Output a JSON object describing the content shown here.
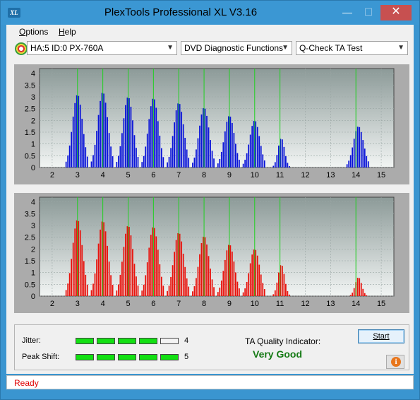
{
  "window": {
    "title": "PlexTools Professional XL V3.16",
    "icon_label": "XL",
    "minimize_glyph": "—",
    "maximize_glyph": "☐",
    "close_glyph": "✕"
  },
  "menu": {
    "items": [
      {
        "label": "Options",
        "accel": "O",
        "rest": "ptions"
      },
      {
        "label": "Help",
        "accel": "H",
        "rest": "elp"
      }
    ]
  },
  "toolbar": {
    "drive": "HA:5 ID:0  PX-760A",
    "function": "DVD Diagnostic Functions",
    "test": "Q-Check TA Test"
  },
  "colors": {
    "top_bars": "#0a14d8",
    "bottom_bars": "#e8120c",
    "marker_lines": "#20d020",
    "meter_fill": "#12e012",
    "status_text": "#e00000",
    "quality_text": "#157a15"
  },
  "charts": {
    "x_ticks": [
      "2",
      "3",
      "4",
      "5",
      "6",
      "7",
      "8",
      "9",
      "10",
      "11",
      "12",
      "13",
      "14",
      "15"
    ],
    "y_ticks": [
      "0",
      "0.5",
      "1",
      "1.5",
      "2",
      "2.5",
      "3",
      "3.5",
      "4"
    ],
    "markers": [
      3,
      4,
      5,
      6,
      7,
      8,
      9,
      10,
      11,
      14
    ]
  },
  "chart_data": [
    {
      "type": "bar",
      "series_color": "#0a14d8",
      "xlim": [
        1.5,
        15.5
      ],
      "ylim": [
        0,
        4.2
      ],
      "peaks": [
        {
          "x": 3.0,
          "height": 3.1
        },
        {
          "x": 4.0,
          "height": 3.2
        },
        {
          "x": 5.0,
          "height": 3.0
        },
        {
          "x": 6.0,
          "height": 2.95
        },
        {
          "x": 7.0,
          "height": 2.75
        },
        {
          "x": 8.0,
          "height": 2.55
        },
        {
          "x": 9.0,
          "height": 2.2
        },
        {
          "x": 10.0,
          "height": 2.0
        },
        {
          "x": 11.05,
          "height": 1.25
        },
        {
          "x": 14.1,
          "height": 1.75
        }
      ]
    },
    {
      "type": "bar",
      "series_color": "#e8120c",
      "xlim": [
        1.5,
        15.5
      ],
      "ylim": [
        0,
        4.2
      ],
      "peaks": [
        {
          "x": 3.0,
          "height": 3.25
        },
        {
          "x": 4.0,
          "height": 3.2
        },
        {
          "x": 5.0,
          "height": 3.0
        },
        {
          "x": 6.0,
          "height": 2.95
        },
        {
          "x": 7.0,
          "height": 2.7
        },
        {
          "x": 8.0,
          "height": 2.55
        },
        {
          "x": 9.0,
          "height": 2.2
        },
        {
          "x": 10.0,
          "height": 2.0
        },
        {
          "x": 11.05,
          "height": 1.35
        },
        {
          "x": 14.1,
          "height": 0.8
        }
      ]
    }
  ],
  "stats": {
    "jitter_label": "Jitter:",
    "jitter_value": "4",
    "jitter_level": 4,
    "peak_label": "Peak Shift:",
    "peak_value": "5",
    "peak_level": 5,
    "max_level": 5,
    "ta_label": "TA Quality Indicator:",
    "ta_value": "Very Good",
    "start_label": "Start",
    "info_glyph": "i"
  },
  "status": {
    "text": "Ready"
  }
}
